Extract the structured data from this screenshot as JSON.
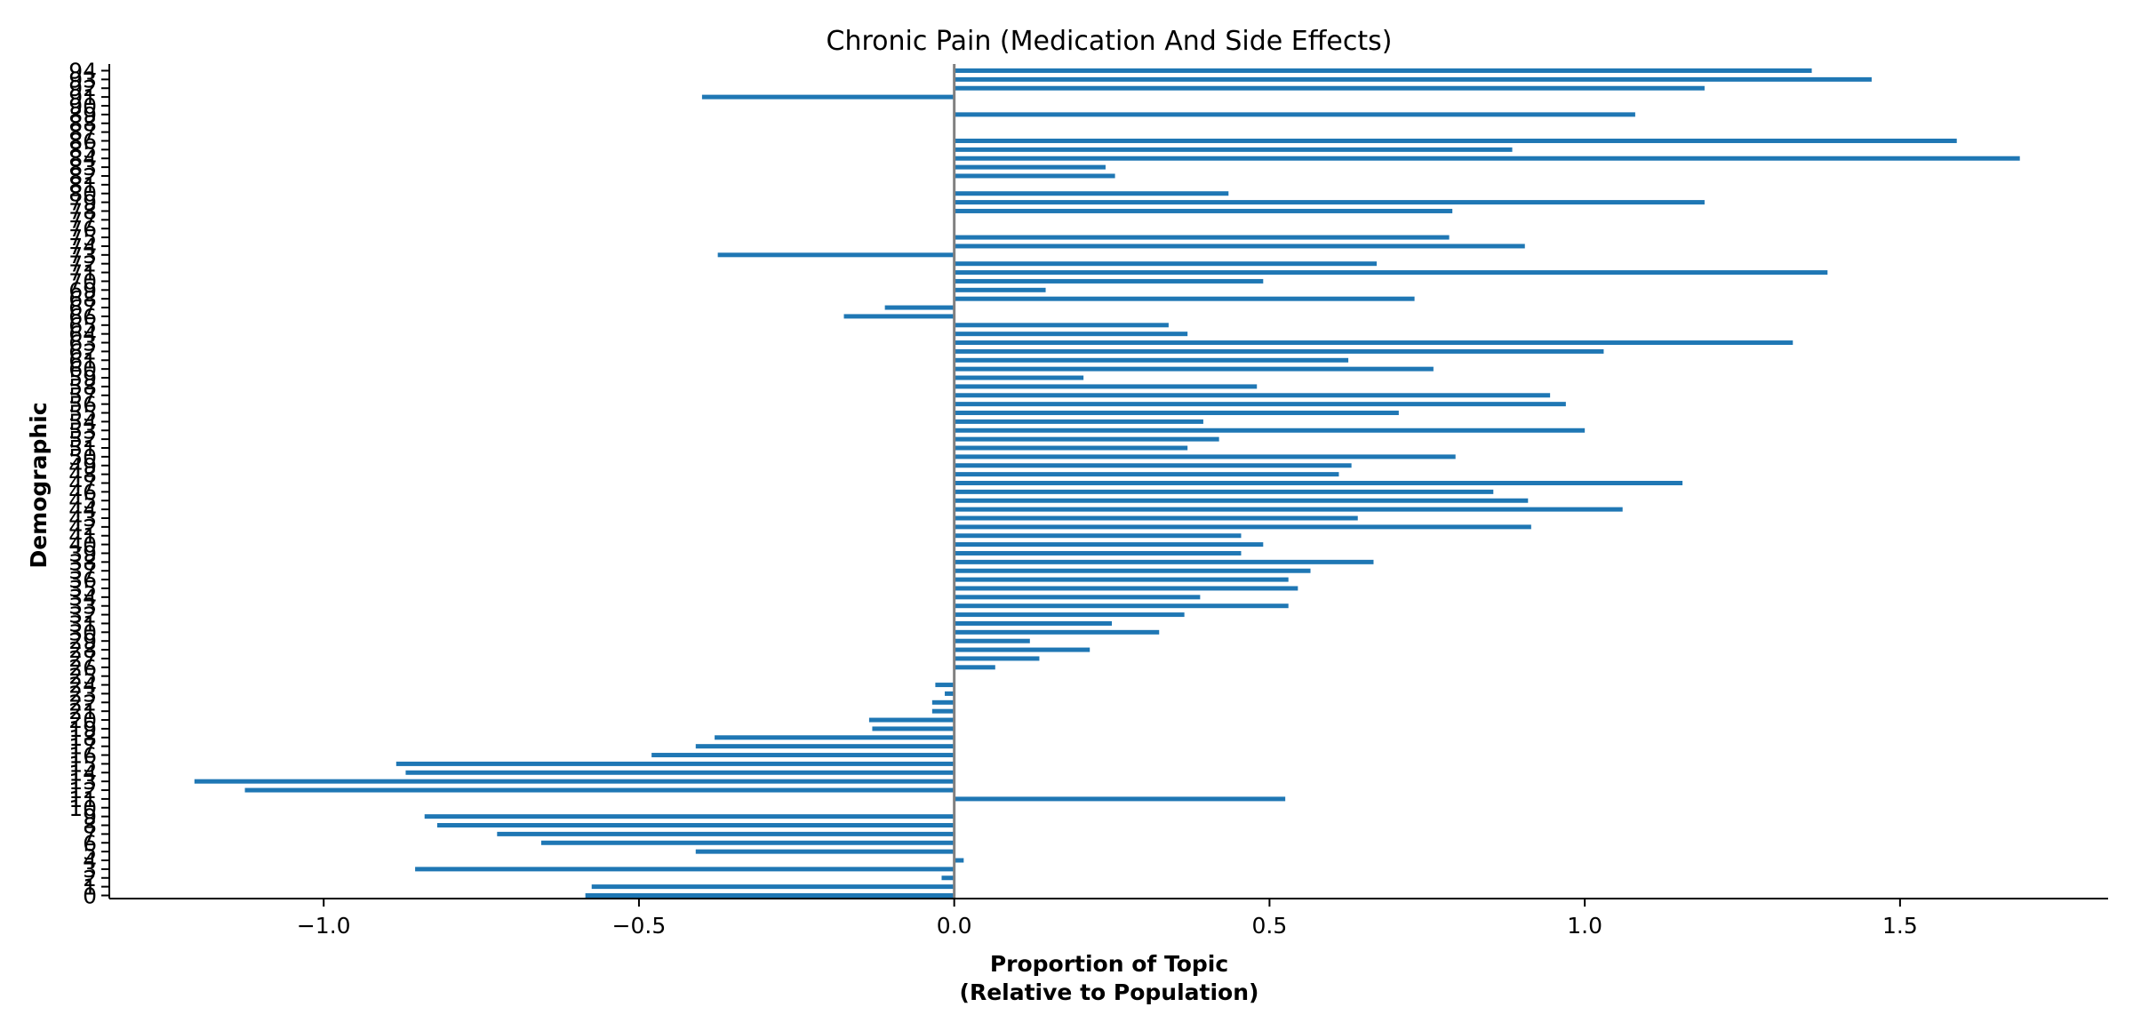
{
  "chart_data": {
    "type": "bar",
    "orientation": "horizontal",
    "title": "Chronic Pain (Medication And Side Effects)",
    "xlabel": "Proportion of Topic\n(Relative to Population)",
    "ylabel": "Demographic",
    "xlim": [
      -1.34,
      1.83
    ],
    "xticks": [
      -1.0,
      -0.5,
      0.0,
      0.5,
      1.0,
      1.5
    ],
    "xtick_labels": [
      "−1.0",
      "−0.5",
      "0.0",
      "0.5",
      "1.0",
      "1.5"
    ],
    "grid": false,
    "legend": "none",
    "bar_color": "#1f77b4",
    "zero_line_color": "#808080",
    "categories": [
      "0",
      "1",
      "2",
      "3",
      "4",
      "5",
      "6",
      "7",
      "8",
      "9",
      "10",
      "11",
      "12",
      "13",
      "14",
      "15",
      "16",
      "17",
      "18",
      "19",
      "20",
      "21",
      "22",
      "23",
      "24",
      "25",
      "26",
      "27",
      "28",
      "29",
      "30",
      "31",
      "32",
      "33",
      "34",
      "35",
      "36",
      "37",
      "38",
      "39",
      "40",
      "41",
      "42",
      "43",
      "44",
      "45",
      "46",
      "47",
      "48",
      "49",
      "50",
      "51",
      "52",
      "53",
      "54",
      "55",
      "56",
      "57",
      "58",
      "59",
      "60",
      "61",
      "62",
      "63",
      "64",
      "65",
      "66",
      "67",
      "68",
      "69",
      "70",
      "71",
      "72",
      "73",
      "74",
      "75",
      "76",
      "77",
      "78",
      "79",
      "80",
      "81",
      "82",
      "83",
      "84",
      "85",
      "86",
      "87",
      "88",
      "89",
      "90",
      "91",
      "92",
      "93",
      "94"
    ],
    "values": [
      -0.585,
      -0.575,
      -0.02,
      -0.855,
      0.015,
      -0.41,
      -0.655,
      -0.725,
      -0.82,
      -0.84,
      0.0,
      0.525,
      -1.125,
      -1.205,
      -0.87,
      -0.885,
      -0.48,
      -0.41,
      -0.38,
      -0.13,
      -0.135,
      -0.035,
      -0.035,
      -0.015,
      -0.03,
      0.0,
      0.065,
      0.135,
      0.215,
      0.12,
      0.325,
      0.25,
      0.365,
      0.53,
      0.39,
      0.545,
      0.53,
      0.565,
      0.665,
      0.455,
      0.49,
      0.455,
      0.915,
      0.64,
      1.06,
      0.91,
      0.855,
      1.155,
      0.61,
      0.63,
      0.795,
      0.37,
      0.42,
      1.0,
      0.395,
      0.705,
      0.97,
      0.945,
      0.48,
      0.205,
      0.76,
      0.625,
      1.03,
      1.33,
      0.37,
      0.34,
      -0.175,
      -0.11,
      0.73,
      0.145,
      0.49,
      1.385,
      0.67,
      -0.375,
      0.905,
      0.785,
      0.0,
      0.0,
      0.79,
      1.19,
      0.435,
      0.0,
      0.255,
      0.24,
      1.69,
      0.885,
      1.59,
      0.0,
      0.0,
      1.08,
      0.0,
      -0.4,
      1.19,
      1.455,
      1.36
    ]
  }
}
